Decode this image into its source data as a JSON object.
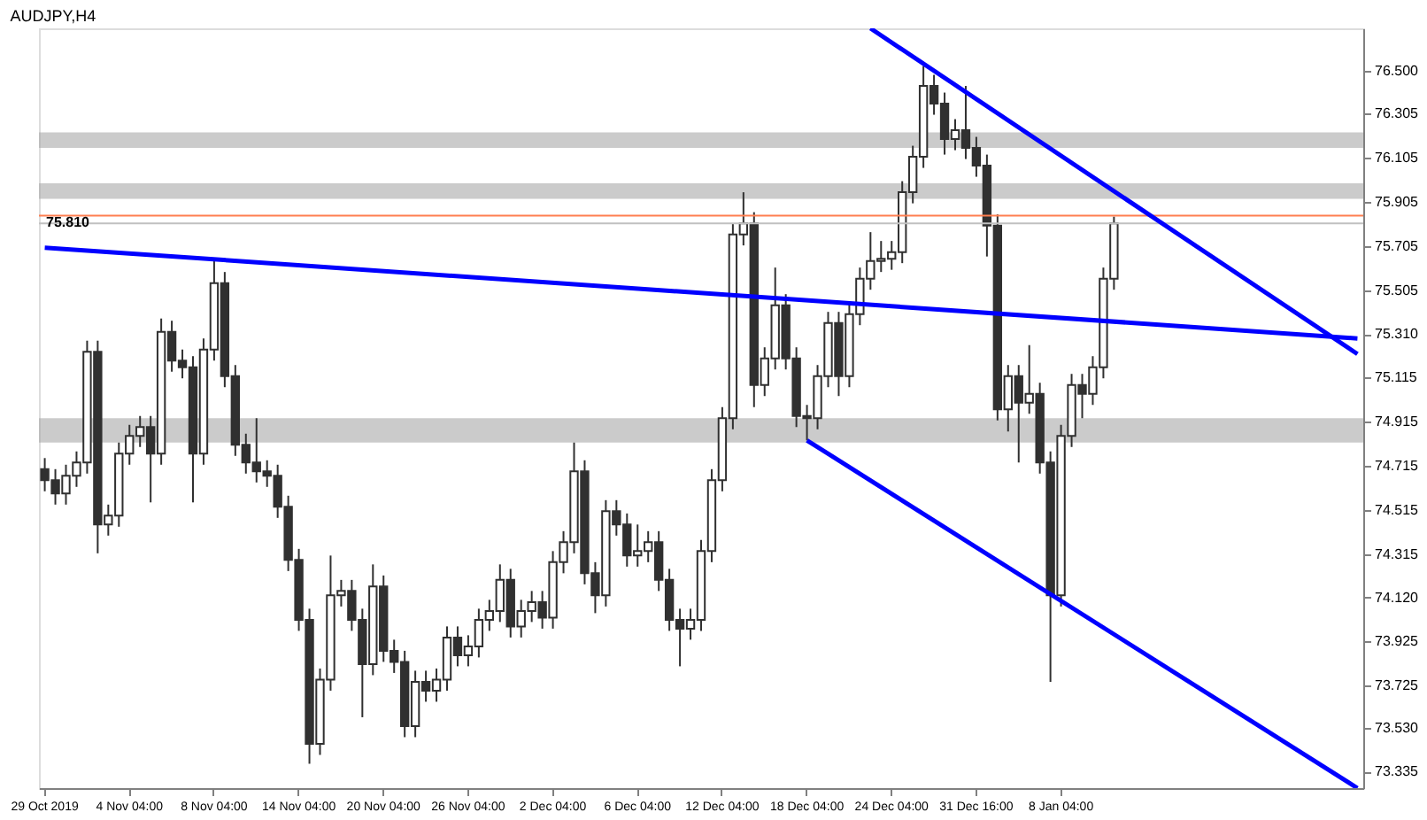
{
  "chart_data": {
    "type": "candlestick",
    "title": "AUDJPY,H4",
    "color": "#303030",
    "categories": [
      "29 Oct 2019",
      null,
      null,
      null,
      null,
      null,
      null,
      null,
      "4 Nov 04:00",
      null,
      null,
      null,
      null,
      null,
      null,
      null,
      "8 Nov 04:00",
      null,
      null,
      null,
      null,
      null,
      null,
      null,
      "14 Nov 04:00",
      null,
      null,
      null,
      null,
      null,
      null,
      null,
      "20 Nov 04:00",
      null,
      null,
      null,
      null,
      null,
      null,
      null,
      "26 Nov 04:00",
      null,
      null,
      null,
      null,
      null,
      null,
      null,
      "2 Dec 04:00",
      null,
      null,
      null,
      null,
      null,
      null,
      null,
      "6 Dec 04:00",
      null,
      null,
      null,
      null,
      null,
      null,
      null,
      "12 Dec 04:00",
      null,
      null,
      null,
      null,
      null,
      null,
      null,
      "18 Dec 04:00",
      null,
      null,
      null,
      null,
      null,
      null,
      null,
      "24 Dec 04:00",
      null,
      null,
      null,
      null,
      null,
      null,
      null,
      "31 Dec 16:00",
      null,
      null,
      null,
      null,
      null,
      null,
      null,
      "8 Jan 04:00",
      null,
      null,
      null,
      null,
      null,
      null,
      null,
      null,
      null,
      null,
      null,
      null,
      null,
      null,
      null,
      null,
      null,
      null,
      null,
      null,
      null,
      null,
      null,
      null,
      null,
      null,
      null,
      null
    ],
    "ohlc": [
      [
        74.7,
        74.75,
        74.6,
        74.65
      ],
      [
        74.65,
        74.7,
        74.54,
        74.59
      ],
      [
        74.59,
        74.72,
        74.54,
        74.67
      ],
      [
        74.67,
        74.78,
        74.62,
        74.73
      ],
      [
        74.73,
        75.28,
        74.68,
        75.23
      ],
      [
        75.23,
        75.28,
        74.32,
        74.45
      ],
      [
        74.45,
        74.54,
        74.4,
        74.49
      ],
      [
        74.49,
        74.82,
        74.44,
        74.77
      ],
      [
        74.77,
        74.9,
        74.72,
        74.85
      ],
      [
        74.85,
        74.94,
        74.8,
        74.89
      ],
      [
        74.89,
        74.94,
        74.55,
        74.77
      ],
      [
        74.77,
        75.38,
        74.72,
        75.32
      ],
      [
        75.32,
        75.37,
        75.14,
        75.19
      ],
      [
        75.19,
        75.24,
        75.11,
        75.16
      ],
      [
        75.16,
        75.21,
        74.55,
        74.77
      ],
      [
        74.77,
        75.29,
        74.72,
        75.24
      ],
      [
        75.24,
        75.65,
        75.19,
        75.54
      ],
      [
        75.54,
        75.59,
        75.07,
        75.12
      ],
      [
        75.12,
        75.17,
        74.76,
        74.81
      ],
      [
        74.81,
        74.86,
        74.68,
        74.73
      ],
      [
        74.73,
        74.93,
        74.64,
        74.69
      ],
      [
        74.69,
        74.74,
        74.62,
        74.67
      ],
      [
        74.67,
        74.72,
        74.48,
        74.53
      ],
      [
        74.53,
        74.58,
        74.24,
        74.29
      ],
      [
        74.29,
        74.34,
        73.97,
        74.02
      ],
      [
        74.02,
        74.07,
        73.37,
        73.46
      ],
      [
        73.46,
        73.8,
        73.41,
        73.75
      ],
      [
        73.75,
        74.31,
        73.7,
        74.13
      ],
      [
        74.13,
        74.2,
        74.08,
        74.15
      ],
      [
        74.15,
        74.2,
        73.97,
        74.02
      ],
      [
        74.02,
        74.07,
        73.58,
        73.82
      ],
      [
        73.82,
        74.27,
        73.77,
        74.17
      ],
      [
        74.17,
        74.22,
        73.83,
        73.88
      ],
      [
        73.88,
        73.93,
        73.78,
        73.83
      ],
      [
        73.83,
        73.88,
        73.49,
        73.54
      ],
      [
        73.54,
        73.79,
        73.49,
        73.74
      ],
      [
        73.74,
        73.79,
        73.65,
        73.7
      ],
      [
        73.7,
        73.8,
        73.65,
        73.75
      ],
      [
        73.75,
        73.99,
        73.7,
        73.94
      ],
      [
        73.94,
        73.99,
        73.81,
        73.86
      ],
      [
        73.86,
        73.95,
        73.81,
        73.9
      ],
      [
        73.9,
        74.07,
        73.85,
        74.02
      ],
      [
        74.02,
        74.11,
        73.97,
        74.06
      ],
      [
        74.06,
        74.27,
        74.01,
        74.2
      ],
      [
        74.2,
        74.25,
        73.94,
        73.99
      ],
      [
        73.99,
        74.11,
        73.94,
        74.06
      ],
      [
        74.06,
        74.15,
        74.01,
        74.1
      ],
      [
        74.1,
        74.15,
        73.98,
        74.03
      ],
      [
        74.03,
        74.33,
        73.98,
        74.28
      ],
      [
        74.28,
        74.42,
        74.23,
        74.37
      ],
      [
        74.37,
        74.82,
        74.32,
        74.69
      ],
      [
        74.69,
        74.74,
        74.18,
        74.23
      ],
      [
        74.23,
        74.28,
        74.05,
        74.13
      ],
      [
        74.13,
        74.56,
        74.08,
        74.51
      ],
      [
        74.51,
        74.56,
        74.4,
        74.45
      ],
      [
        74.45,
        74.5,
        74.26,
        74.31
      ],
      [
        74.31,
        74.45,
        74.26,
        74.33
      ],
      [
        74.33,
        74.42,
        74.28,
        74.37
      ],
      [
        74.37,
        74.42,
        74.15,
        74.2
      ],
      [
        74.2,
        74.25,
        73.97,
        74.02
      ],
      [
        74.02,
        74.07,
        73.81,
        73.98
      ],
      [
        73.98,
        74.07,
        73.93,
        74.02
      ],
      [
        74.02,
        74.38,
        73.97,
        74.33
      ],
      [
        74.33,
        74.7,
        74.28,
        74.65
      ],
      [
        74.65,
        74.98,
        74.6,
        74.93
      ],
      [
        74.93,
        75.81,
        74.88,
        75.76
      ],
      [
        75.76,
        75.95,
        75.71,
        75.81
      ],
      [
        75.81,
        75.86,
        74.98,
        75.08
      ],
      [
        75.08,
        75.25,
        75.03,
        75.2
      ],
      [
        75.2,
        75.61,
        75.15,
        75.44
      ],
      [
        75.44,
        75.49,
        75.15,
        75.2
      ],
      [
        75.2,
        75.25,
        74.89,
        74.94
      ],
      [
        74.94,
        74.99,
        74.83,
        74.93
      ],
      [
        74.93,
        75.17,
        74.88,
        75.12
      ],
      [
        75.12,
        75.41,
        75.07,
        75.36
      ],
      [
        75.36,
        75.41,
        75.03,
        75.12
      ],
      [
        75.12,
        75.45,
        75.07,
        75.4
      ],
      [
        75.4,
        75.61,
        75.35,
        75.56
      ],
      [
        75.56,
        75.77,
        75.51,
        75.64
      ],
      [
        75.64,
        75.73,
        75.59,
        75.65
      ],
      [
        75.65,
        75.73,
        75.6,
        75.68
      ],
      [
        75.68,
        76.0,
        75.63,
        75.95
      ],
      [
        75.95,
        76.16,
        75.9,
        76.11
      ],
      [
        76.11,
        76.52,
        76.06,
        76.43
      ],
      [
        76.43,
        76.48,
        76.3,
        76.35
      ],
      [
        76.35,
        76.4,
        76.12,
        76.19
      ],
      [
        76.19,
        76.28,
        76.14,
        76.23
      ],
      [
        76.23,
        76.43,
        76.1,
        76.15
      ],
      [
        76.15,
        76.2,
        76.02,
        76.07
      ],
      [
        76.07,
        76.12,
        75.66,
        75.8
      ],
      [
        75.8,
        75.85,
        74.92,
        74.97
      ],
      [
        74.97,
        75.17,
        74.87,
        75.12
      ],
      [
        75.12,
        75.17,
        74.73,
        75.0
      ],
      [
        75.0,
        75.26,
        74.95,
        75.04
      ],
      [
        75.04,
        75.09,
        74.68,
        74.73
      ],
      [
        74.73,
        74.78,
        73.74,
        74.13
      ],
      [
        74.13,
        74.9,
        74.08,
        74.85
      ],
      [
        74.85,
        75.13,
        74.8,
        75.08
      ],
      [
        75.08,
        75.13,
        74.93,
        75.04
      ],
      [
        75.04,
        75.21,
        74.99,
        75.16
      ],
      [
        75.16,
        75.61,
        75.11,
        75.56
      ],
      [
        75.56,
        75.84,
        75.51,
        75.81
      ],
      null,
      null,
      null,
      null,
      null,
      null,
      null,
      null,
      null,
      null,
      null,
      null,
      null,
      null,
      null,
      null,
      null,
      null,
      null,
      null,
      null,
      null,
      null
    ],
    "series": [
      {
        "type": "line",
        "color": "#0000ff",
        "values": [
          75.7,
          null,
          null,
          null,
          null,
          null,
          null,
          null,
          null,
          null,
          null,
          null,
          null,
          null,
          null,
          null,
          null,
          null,
          null,
          null,
          null,
          null,
          null,
          null,
          null,
          null,
          null,
          null,
          null,
          null,
          null,
          null,
          null,
          null,
          null,
          null,
          null,
          null,
          null,
          null,
          null,
          null,
          null,
          null,
          null,
          null,
          null,
          null,
          null,
          null,
          null,
          null,
          null,
          null,
          null,
          null,
          null,
          null,
          null,
          null,
          null,
          null,
          null,
          null,
          null,
          null,
          null,
          null,
          null,
          null,
          null,
          null,
          null,
          null,
          null,
          null,
          null,
          null,
          null,
          null,
          null,
          null,
          null,
          null,
          null,
          null,
          null,
          null,
          null,
          null,
          null,
          null,
          null,
          null,
          null,
          null,
          null,
          null,
          null,
          null,
          null,
          null,
          null,
          null,
          null,
          null,
          null,
          null,
          null,
          null,
          null,
          null,
          null,
          null,
          null,
          null,
          null,
          null,
          null,
          null,
          null,
          null,
          null,
          null,
          75.29
        ]
      },
      {
        "type": "line",
        "color": "#0000ff",
        "values": [
          null,
          null,
          null,
          null,
          null,
          null,
          null,
          null,
          null,
          null,
          null,
          null,
          null,
          null,
          null,
          null,
          null,
          null,
          null,
          null,
          null,
          null,
          null,
          null,
          null,
          null,
          null,
          null,
          null,
          null,
          null,
          null,
          null,
          null,
          null,
          null,
          null,
          null,
          null,
          null,
          null,
          null,
          null,
          null,
          null,
          null,
          null,
          null,
          null,
          null,
          null,
          null,
          null,
          null,
          null,
          null,
          null,
          null,
          null,
          null,
          null,
          null,
          null,
          null,
          null,
          null,
          null,
          null,
          null,
          null,
          null,
          null,
          null,
          null,
          null,
          null,
          null,
          null,
          76.69,
          null,
          null,
          null,
          null,
          null,
          null,
          null,
          null,
          null,
          null,
          null,
          null,
          null,
          null,
          null,
          null,
          null,
          null,
          null,
          null,
          null,
          null,
          null,
          null,
          null,
          null,
          null,
          null,
          null,
          null,
          null,
          null,
          null,
          null,
          null,
          null,
          null,
          null,
          null,
          null,
          null,
          null,
          null,
          null,
          null,
          75.22
        ]
      },
      {
        "type": "line",
        "color": "#0000ff",
        "values": [
          null,
          null,
          null,
          null,
          null,
          null,
          null,
          null,
          null,
          null,
          null,
          null,
          null,
          null,
          null,
          null,
          null,
          null,
          null,
          null,
          null,
          null,
          null,
          null,
          null,
          null,
          null,
          null,
          null,
          null,
          null,
          null,
          null,
          null,
          null,
          null,
          null,
          null,
          null,
          null,
          null,
          null,
          null,
          null,
          null,
          null,
          null,
          null,
          null,
          null,
          null,
          null,
          null,
          null,
          null,
          null,
          null,
          null,
          null,
          null,
          null,
          null,
          null,
          null,
          null,
          null,
          null,
          null,
          null,
          null,
          null,
          null,
          74.83,
          null,
          null,
          null,
          null,
          null,
          null,
          null,
          null,
          null,
          null,
          null,
          null,
          null,
          null,
          null,
          null,
          null,
          null,
          null,
          null,
          null,
          null,
          null,
          null,
          null,
          null,
          null,
          null,
          null,
          null,
          null,
          null,
          null,
          null,
          null,
          null,
          null,
          null,
          null,
          null,
          null,
          null,
          null,
          null,
          null,
          null,
          null,
          null,
          null,
          null,
          null,
          73.26
        ]
      }
    ],
    "bands": [
      {
        "axis": "y",
        "from": 76.15,
        "to": 76.22,
        "color": "#a9a9a9"
      },
      {
        "axis": "y",
        "from": 75.92,
        "to": 75.99,
        "color": "#a9a9a9"
      },
      {
        "axis": "y",
        "from": 74.82,
        "to": 74.93,
        "color": "#a9a9a9"
      }
    ],
    "ref_lines": [
      {
        "axis": "y",
        "value": 75.844,
        "color": "#ff7f50"
      },
      {
        "axis": "y",
        "value": 75.81,
        "label": "75.810",
        "color": "#c0c0c0"
      }
    ],
    "ylim": [
      73.26,
      76.69
    ],
    "yticks": [
      {
        "value": 76.5,
        "label": "76.500"
      },
      {
        "value": 76.305,
        "label": "76.305"
      },
      {
        "value": 76.105,
        "label": "76.105"
      },
      {
        "value": 75.905,
        "label": "75.905"
      },
      {
        "value": 75.705,
        "label": "75.705"
      },
      {
        "value": 75.505,
        "label": "75.505"
      },
      {
        "value": 75.31,
        "label": "75.310"
      },
      {
        "value": 75.115,
        "label": "75.115"
      },
      {
        "value": 74.915,
        "label": "74.915"
      },
      {
        "value": 74.715,
        "label": "74.715"
      },
      {
        "value": 74.515,
        "label": "74.515"
      },
      {
        "value": 74.315,
        "label": "74.315"
      },
      {
        "value": 74.12,
        "label": "74.120"
      },
      {
        "value": 73.925,
        "label": "73.925"
      },
      {
        "value": 73.725,
        "label": "73.725"
      },
      {
        "value": 73.53,
        "label": "73.530"
      },
      {
        "value": 73.335,
        "label": "73.335"
      }
    ]
  }
}
